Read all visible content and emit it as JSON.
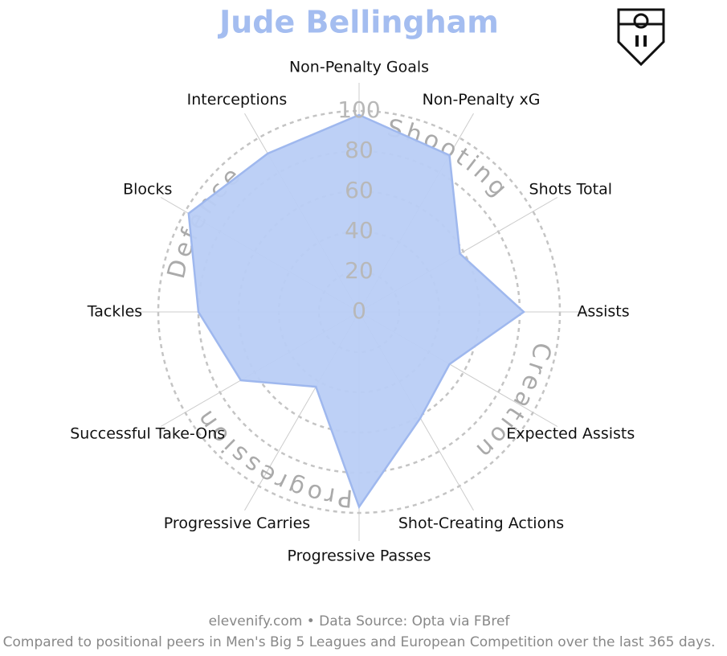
{
  "chart_data": {
    "type": "radar",
    "title": "Jude Bellingham",
    "categories": [
      "Non-Penalty Goals",
      "Non-Penalty xG",
      "Shots Total",
      "Assists",
      "Expected Assists",
      "Shot-Creating Actions",
      "Progressive Passes",
      "Progressive Carries",
      "Successful Take-Ons",
      "Tackles",
      "Blocks",
      "Interceptions"
    ],
    "values": [
      98,
      90,
      58,
      82,
      52,
      61,
      97,
      43,
      68,
      80,
      98,
      91
    ],
    "color": "#b9cdf5",
    "groups": [
      "Shooting",
      "Creation",
      "Progression",
      "Defence"
    ],
    "rlim": [
      0,
      100
    ],
    "rticks": [
      0,
      20,
      40,
      60,
      80,
      100
    ],
    "grid": true,
    "footer": [
      "elevenify.com • Data Source: Opta via FBref",
      "Compared to positional peers in Men's Big 5 Leagues and European Competition over the last 365 days."
    ]
  }
}
